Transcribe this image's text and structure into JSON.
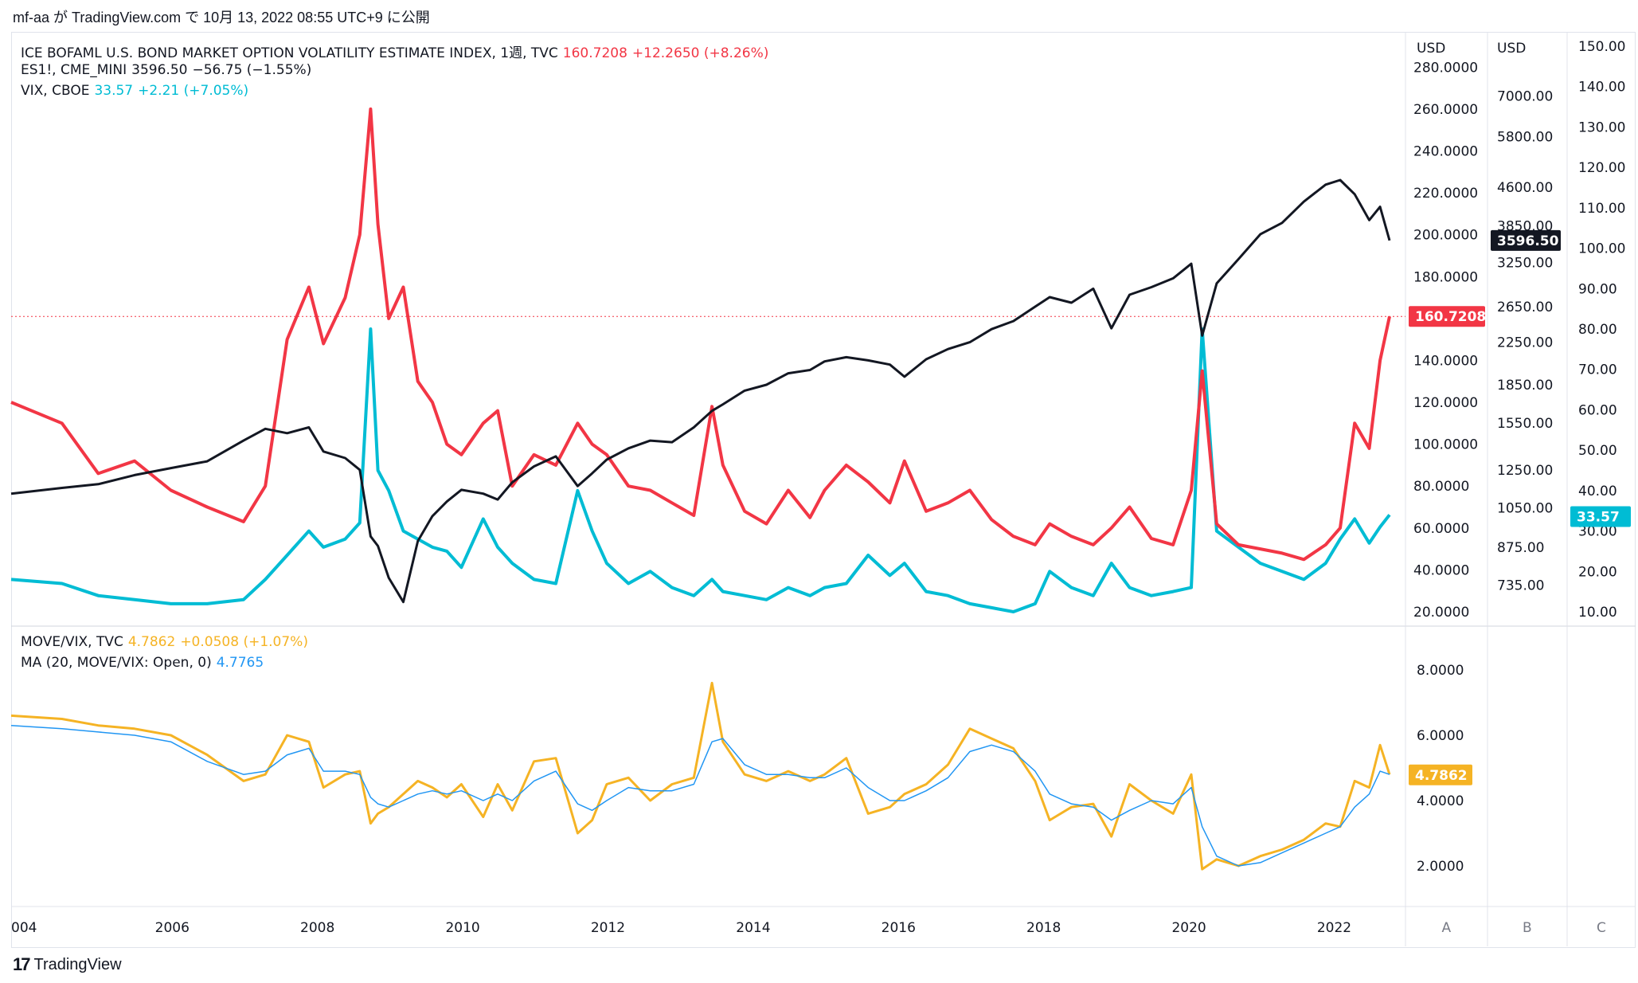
{
  "header": {
    "published": "mf-aa が TradingView.com で 10月 13, 2022 08:55 UTC+9 に公開"
  },
  "footer": {
    "brand": "TradingView",
    "logo_icon": "tradingview-logo-icon"
  },
  "legend_top": [
    {
      "name": "ICE BOFAML U.S. BOND MARKET OPTION VOLATILITY ESTIMATE INDEX, 1週, TVC",
      "value": "160.7208",
      "change": "+12.2650 (+8.26%)",
      "color": "#f23645"
    },
    {
      "name": "ES1!, CME_MINI",
      "value": "3596.50",
      "change": "−56.75 (−1.55%)",
      "color": "#131722"
    },
    {
      "name": "VIX, CBOE",
      "value": "33.57",
      "change": "+2.21 (+7.05%)",
      "color": "#00bcd4"
    }
  ],
  "legend_bottom": [
    {
      "name": "MOVE/VIX, TVC",
      "value": "4.7862",
      "change": "+0.0508 (+1.07%)",
      "color": "#f5b324"
    },
    {
      "name": "MA (20, MOVE/VIX: Open, 0)",
      "value": "4.7765",
      "change": "",
      "color": "#2196f3"
    }
  ],
  "scales": {
    "A": {
      "label": "A",
      "currency": "USD",
      "ticks": [
        "280.0000",
        "260.0000",
        "240.0000",
        "220.0000",
        "200.0000",
        "180.0000",
        "160.0000",
        "140.0000",
        "120.0000",
        "100.0000",
        "80.0000",
        "60.0000",
        "40.0000",
        "20.0000"
      ],
      "last_label": "160.7208",
      "last_color": "#f23645"
    },
    "B": {
      "label": "B",
      "currency": "USD",
      "ticks": [
        "7000.00",
        "5800.00",
        "4600.00",
        "3850.00",
        "3250.00",
        "2650.00",
        "2250.00",
        "1850.00",
        "1550.00",
        "1250.00",
        "1050.00",
        "875.00",
        "735.00"
      ],
      "last_label": "3596.50",
      "last_color": "#131722"
    },
    "C": {
      "label": "C",
      "ticks": [
        "150.00",
        "140.00",
        "130.00",
        "120.00",
        "110.00",
        "100.00",
        "90.00",
        "80.00",
        "70.00",
        "60.00",
        "50.00",
        "40.00",
        "30.00",
        "20.00",
        "10.00"
      ],
      "last_label": "33.57",
      "last_color": "#00bcd4"
    },
    "lower": {
      "ticks": [
        "8.0000",
        "6.0000",
        "4.0000",
        "2.0000"
      ],
      "last_label": "4.7862",
      "last_color": "#f5b324"
    }
  },
  "xaxis": {
    "labels": [
      "004",
      "2006",
      "2008",
      "2010",
      "2012",
      "2014",
      "2016",
      "2018",
      "2020",
      "2022"
    ]
  },
  "chart_data": [
    {
      "type": "line",
      "xlabel": "",
      "ylabel": "",
      "x": [
        2003.8,
        2004.5,
        2005.0,
        2005.5,
        2006.0,
        2006.5,
        2007.0,
        2007.3,
        2007.6,
        2007.9,
        2008.1,
        2008.4,
        2008.6,
        2008.75,
        2008.85,
        2009.0,
        2009.2,
        2009.4,
        2009.6,
        2009.8,
        2010.0,
        2010.3,
        2010.5,
        2010.7,
        2011.0,
        2011.3,
        2011.6,
        2011.8,
        2012.0,
        2012.3,
        2012.6,
        2012.9,
        2013.2,
        2013.45,
        2013.6,
        2013.9,
        2014.2,
        2014.5,
        2014.8,
        2015.0,
        2015.3,
        2015.6,
        2015.9,
        2016.1,
        2016.4,
        2016.7,
        2017.0,
        2017.3,
        2017.6,
        2017.9,
        2018.1,
        2018.4,
        2018.7,
        2018.95,
        2019.2,
        2019.5,
        2019.8,
        2020.05,
        2020.2,
        2020.4,
        2020.7,
        2021.0,
        2021.3,
        2021.6,
        2021.9,
        2022.1,
        2022.3,
        2022.5,
        2022.65,
        2022.78
      ],
      "series": [
        {
          "name": "ICE BOFAML U.S. BOND MARKET OPTION VOLATILITY ESTIMATE INDEX",
          "axis": "A",
          "color": "#f23645",
          "values": [
            120,
            110,
            86,
            92,
            78,
            70,
            63,
            80,
            150,
            175,
            148,
            170,
            200,
            260,
            205,
            160,
            175,
            130,
            120,
            100,
            95,
            110,
            116,
            80,
            95,
            90,
            110,
            100,
            95,
            80,
            78,
            72,
            66,
            118,
            90,
            68,
            62,
            78,
            65,
            78,
            90,
            82,
            72,
            92,
            68,
            72,
            78,
            64,
            56,
            52,
            62,
            56,
            52,
            60,
            70,
            55,
            52,
            78,
            135,
            62,
            52,
            50,
            48,
            45,
            52,
            60,
            110,
            98,
            140,
            161
          ]
        },
        {
          "name": "ES1!, CME_MINI",
          "axis": "B",
          "color": "#131722",
          "values": [
            1120,
            1150,
            1170,
            1220,
            1260,
            1300,
            1430,
            1510,
            1480,
            1520,
            1360,
            1320,
            1250,
            920,
            880,
            760,
            680,
            900,
            1010,
            1080,
            1140,
            1120,
            1090,
            1180,
            1270,
            1330,
            1160,
            1230,
            1310,
            1380,
            1430,
            1420,
            1520,
            1640,
            1690,
            1800,
            1850,
            1950,
            1980,
            2060,
            2100,
            2070,
            2030,
            1920,
            2080,
            2180,
            2250,
            2390,
            2480,
            2650,
            2770,
            2700,
            2880,
            2400,
            2800,
            2900,
            3020,
            3230,
            2320,
            2950,
            3300,
            3700,
            3900,
            4300,
            4650,
            4750,
            4450,
            3950,
            4200,
            3596
          ]
        },
        {
          "name": "VIX, CBOE",
          "axis": "C",
          "color": "#00bcd4",
          "values": [
            18,
            17,
            14,
            13,
            12,
            12,
            13,
            18,
            24,
            30,
            26,
            28,
            32,
            80,
            45,
            40,
            30,
            28,
            26,
            25,
            21,
            33,
            26,
            22,
            18,
            17,
            40,
            30,
            22,
            17,
            20,
            16,
            14,
            18,
            15,
            14,
            13,
            16,
            14,
            16,
            17,
            24,
            19,
            22,
            15,
            14,
            12,
            11,
            10,
            12,
            20,
            16,
            14,
            22,
            16,
            14,
            15,
            16,
            80,
            30,
            26,
            22,
            20,
            18,
            22,
            28,
            33,
            27,
            31,
            34
          ]
        }
      ],
      "ylim_A": [
        20,
        290
      ],
      "ylim_C": [
        10,
        150
      ]
    },
    {
      "type": "line",
      "x": [
        2003.8,
        2004.5,
        2005.0,
        2005.5,
        2006.0,
        2006.5,
        2007.0,
        2007.3,
        2007.6,
        2007.9,
        2008.1,
        2008.4,
        2008.6,
        2008.75,
        2008.85,
        2009.0,
        2009.2,
        2009.4,
        2009.6,
        2009.8,
        2010.0,
        2010.3,
        2010.5,
        2010.7,
        2011.0,
        2011.3,
        2011.6,
        2011.8,
        2012.0,
        2012.3,
        2012.6,
        2012.9,
        2013.2,
        2013.45,
        2013.6,
        2013.9,
        2014.2,
        2014.5,
        2014.8,
        2015.0,
        2015.3,
        2015.6,
        2015.9,
        2016.1,
        2016.4,
        2016.7,
        2017.0,
        2017.3,
        2017.6,
        2017.9,
        2018.1,
        2018.4,
        2018.7,
        2018.95,
        2019.2,
        2019.5,
        2019.8,
        2020.05,
        2020.2,
        2020.4,
        2020.7,
        2021.0,
        2021.3,
        2021.6,
        2021.9,
        2022.1,
        2022.3,
        2022.5,
        2022.65,
        2022.78
      ],
      "series": [
        {
          "name": "MOVE/VIX, TVC",
          "color": "#f5b324",
          "values": [
            6.6,
            6.5,
            6.3,
            6.2,
            6.0,
            5.4,
            4.6,
            4.8,
            6.0,
            5.8,
            4.4,
            4.8,
            4.9,
            3.3,
            3.6,
            3.8,
            4.2,
            4.6,
            4.4,
            4.1,
            4.5,
            3.5,
            4.5,
            3.7,
            5.2,
            5.3,
            3.0,
            3.4,
            4.5,
            4.7,
            4.0,
            4.5,
            4.7,
            7.6,
            5.8,
            4.8,
            4.6,
            4.9,
            4.6,
            4.8,
            5.3,
            3.6,
            3.8,
            4.2,
            4.5,
            5.1,
            6.2,
            5.9,
            5.6,
            4.6,
            3.4,
            3.8,
            3.9,
            2.9,
            4.5,
            4.0,
            3.6,
            4.8,
            1.9,
            2.2,
            2.0,
            2.3,
            2.5,
            2.8,
            3.3,
            3.2,
            4.6,
            4.4,
            5.7,
            4.8
          ]
        },
        {
          "name": "MA (20, MOVE/VIX: Open, 0)",
          "color": "#2196f3",
          "values": [
            6.3,
            6.2,
            6.1,
            6.0,
            5.8,
            5.2,
            4.8,
            4.9,
            5.4,
            5.6,
            4.9,
            4.9,
            4.8,
            4.1,
            3.9,
            3.8,
            4.0,
            4.2,
            4.3,
            4.2,
            4.3,
            4.0,
            4.2,
            4.0,
            4.6,
            4.9,
            3.9,
            3.7,
            4.0,
            4.4,
            4.3,
            4.3,
            4.5,
            5.8,
            5.9,
            5.1,
            4.8,
            4.8,
            4.7,
            4.7,
            5.0,
            4.4,
            4.0,
            4.0,
            4.3,
            4.7,
            5.5,
            5.7,
            5.5,
            4.9,
            4.2,
            3.9,
            3.8,
            3.4,
            3.7,
            4.0,
            3.9,
            4.4,
            3.2,
            2.3,
            2.0,
            2.1,
            2.4,
            2.7,
            3.0,
            3.2,
            3.8,
            4.2,
            4.9,
            4.8
          ]
        }
      ],
      "ylim": [
        1.0,
        9.0
      ]
    }
  ]
}
